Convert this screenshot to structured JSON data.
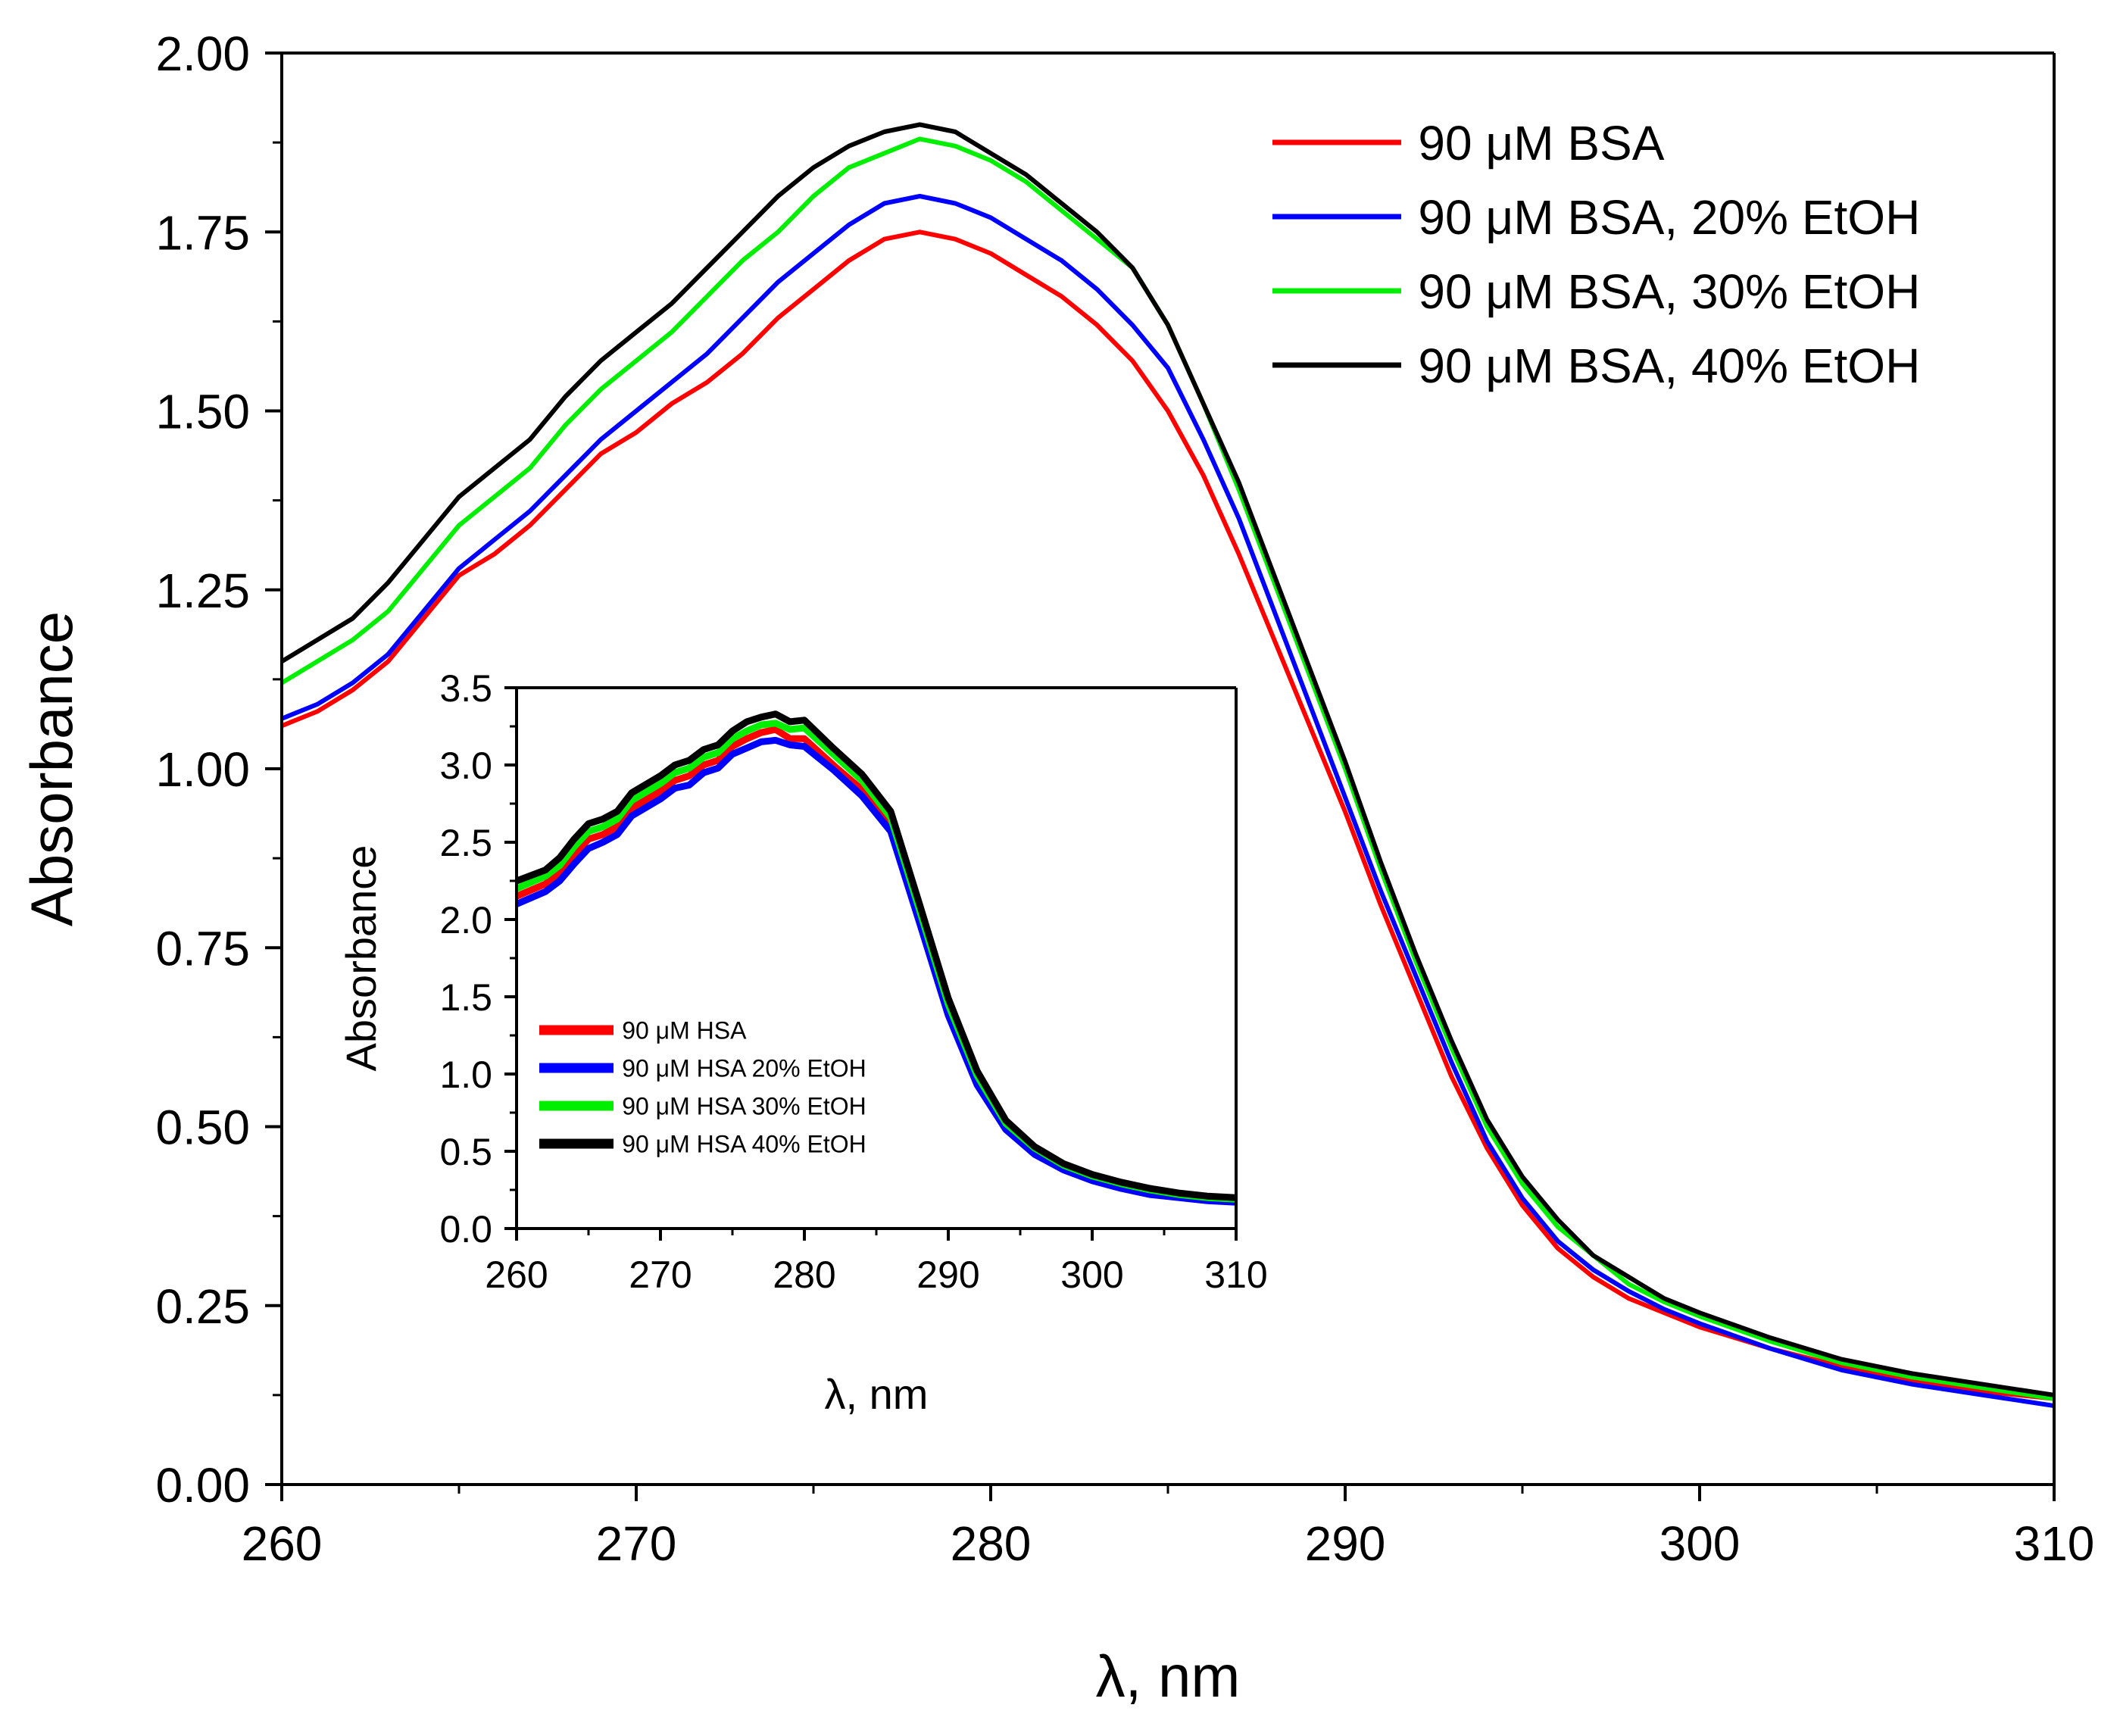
{
  "chart_data": [
    {
      "id": "main",
      "type": "line",
      "xlabel": "λ, nm",
      "ylabel": "Absorbance",
      "xlim": [
        260,
        310
      ],
      "ylim": [
        0,
        2
      ],
      "xticks": [
        260,
        270,
        280,
        290,
        300,
        310
      ],
      "xtick_labels": [
        "260",
        "270",
        "280",
        "290",
        "300",
        "310"
      ],
      "yticks": [
        0,
        0.25,
        0.5,
        0.75,
        1.0,
        1.25,
        1.5,
        1.75,
        2.0
      ],
      "ytick_labels": [
        "0.00",
        "0.25",
        "0.50",
        "0.75",
        "1.00",
        "1.25",
        "1.50",
        "1.75",
        "2.00"
      ],
      "legend_position": "top-right",
      "x": [
        260,
        261,
        262,
        263,
        264,
        265,
        266,
        267,
        268,
        269,
        270,
        271,
        272,
        273,
        274,
        275,
        276,
        277,
        278,
        279,
        280,
        281,
        282,
        283,
        284,
        285,
        286,
        287,
        288,
        289,
        290,
        291,
        292,
        293,
        294,
        295,
        296,
        297,
        298,
        299,
        300,
        302,
        304,
        306,
        308,
        310
      ],
      "series": [
        {
          "name": "90 μM BSA",
          "color": "#ff0000",
          "values": [
            1.06,
            1.08,
            1.11,
            1.15,
            1.21,
            1.27,
            1.3,
            1.34,
            1.39,
            1.44,
            1.47,
            1.51,
            1.54,
            1.58,
            1.63,
            1.67,
            1.71,
            1.74,
            1.75,
            1.74,
            1.72,
            1.69,
            1.66,
            1.62,
            1.57,
            1.5,
            1.41,
            1.3,
            1.18,
            1.06,
            0.94,
            0.81,
            0.69,
            0.57,
            0.47,
            0.39,
            0.33,
            0.29,
            0.26,
            0.24,
            0.22,
            0.19,
            0.165,
            0.145,
            0.13,
            0.12
          ]
        },
        {
          "name": "90 μM BSA, 20% EtOH",
          "color": "#0000ff",
          "values": [
            1.07,
            1.09,
            1.12,
            1.16,
            1.22,
            1.28,
            1.32,
            1.36,
            1.41,
            1.46,
            1.5,
            1.54,
            1.58,
            1.63,
            1.68,
            1.72,
            1.76,
            1.79,
            1.8,
            1.79,
            1.77,
            1.74,
            1.71,
            1.67,
            1.62,
            1.56,
            1.46,
            1.35,
            1.22,
            1.09,
            0.96,
            0.83,
            0.71,
            0.59,
            0.48,
            0.4,
            0.34,
            0.3,
            0.27,
            0.245,
            0.225,
            0.19,
            0.16,
            0.14,
            0.125,
            0.11
          ]
        },
        {
          "name": "90 μM BSA, 30% EtOH",
          "color": "#00ee00",
          "values": [
            1.12,
            1.15,
            1.18,
            1.22,
            1.28,
            1.34,
            1.38,
            1.42,
            1.48,
            1.53,
            1.57,
            1.61,
            1.66,
            1.71,
            1.75,
            1.8,
            1.84,
            1.86,
            1.88,
            1.87,
            1.85,
            1.82,
            1.78,
            1.74,
            1.7,
            1.62,
            1.51,
            1.39,
            1.26,
            1.13,
            1.0,
            0.86,
            0.73,
            0.61,
            0.5,
            0.42,
            0.36,
            0.32,
            0.28,
            0.255,
            0.235,
            0.2,
            0.17,
            0.15,
            0.135,
            0.12
          ]
        },
        {
          "name": "90 μM BSA, 40% EtOH",
          "color": "#000000",
          "values": [
            1.15,
            1.18,
            1.21,
            1.26,
            1.32,
            1.38,
            1.42,
            1.46,
            1.52,
            1.57,
            1.61,
            1.65,
            1.7,
            1.75,
            1.8,
            1.84,
            1.87,
            1.89,
            1.9,
            1.89,
            1.86,
            1.83,
            1.79,
            1.75,
            1.7,
            1.62,
            1.51,
            1.4,
            1.27,
            1.14,
            1.01,
            0.87,
            0.74,
            0.62,
            0.51,
            0.43,
            0.37,
            0.32,
            0.29,
            0.26,
            0.24,
            0.205,
            0.175,
            0.155,
            0.14,
            0.125
          ]
        }
      ]
    },
    {
      "id": "inset",
      "type": "line",
      "xlabel": "λ, nm",
      "ylabel": "Absorbance",
      "xlim": [
        260,
        310
      ],
      "ylim": [
        0,
        3.5
      ],
      "xticks": [
        260,
        270,
        280,
        290,
        300,
        310
      ],
      "xtick_labels": [
        "260",
        "270",
        "280",
        "290",
        "300",
        "310"
      ],
      "yticks": [
        0,
        0.5,
        1.0,
        1.5,
        2.0,
        2.5,
        3.0,
        3.5
      ],
      "ytick_labels": [
        "0.0",
        "0.5",
        "1.0",
        "1.5",
        "2.0",
        "2.5",
        "3.0",
        "3.5"
      ],
      "legend_position": "bottom-left",
      "x": [
        260,
        262,
        263,
        264,
        265,
        266,
        267,
        268,
        270,
        271,
        272,
        273,
        274,
        275,
        276,
        277,
        278,
        279,
        280,
        282,
        284,
        286,
        288,
        290,
        292,
        294,
        296,
        298,
        300,
        302,
        304,
        306,
        308,
        310
      ],
      "series": [
        {
          "name": "90 μM HSA",
          "color": "#ff0000",
          "values": [
            2.15,
            2.23,
            2.3,
            2.42,
            2.52,
            2.55,
            2.6,
            2.72,
            2.83,
            2.9,
            2.93,
            3.0,
            3.03,
            3.12,
            3.17,
            3.21,
            3.23,
            3.17,
            3.17,
            3.0,
            2.84,
            2.6,
            2.0,
            1.4,
            0.95,
            0.66,
            0.5,
            0.4,
            0.33,
            0.28,
            0.24,
            0.22,
            0.2,
            0.19
          ]
        },
        {
          "name": "90 μM HSA 20% EtOH",
          "color": "#0000ff",
          "values": [
            2.1,
            2.18,
            2.25,
            2.36,
            2.46,
            2.5,
            2.55,
            2.67,
            2.78,
            2.85,
            2.87,
            2.95,
            2.98,
            3.07,
            3.11,
            3.15,
            3.16,
            3.13,
            3.12,
            2.97,
            2.8,
            2.57,
            1.98,
            1.38,
            0.93,
            0.64,
            0.48,
            0.38,
            0.31,
            0.26,
            0.22,
            0.2,
            0.18,
            0.17
          ]
        },
        {
          "name": "90 μM HSA 30% EtOH",
          "color": "#00ee00",
          "values": [
            2.2,
            2.28,
            2.35,
            2.47,
            2.57,
            2.6,
            2.65,
            2.77,
            2.88,
            2.95,
            2.98,
            3.05,
            3.08,
            3.17,
            3.22,
            3.26,
            3.27,
            3.23,
            3.24,
            3.07,
            2.9,
            2.66,
            2.06,
            1.45,
            0.99,
            0.68,
            0.52,
            0.41,
            0.34,
            0.29,
            0.25,
            0.22,
            0.2,
            0.19
          ]
        },
        {
          "name": "90 μM HSA 40% EtOH",
          "color": "#000000",
          "values": [
            2.25,
            2.32,
            2.4,
            2.52,
            2.62,
            2.65,
            2.7,
            2.82,
            2.93,
            3.0,
            3.03,
            3.1,
            3.13,
            3.22,
            3.28,
            3.31,
            3.33,
            3.28,
            3.29,
            3.11,
            2.94,
            2.7,
            2.1,
            1.49,
            1.02,
            0.7,
            0.53,
            0.42,
            0.35,
            0.3,
            0.26,
            0.23,
            0.21,
            0.2
          ]
        }
      ]
    }
  ]
}
